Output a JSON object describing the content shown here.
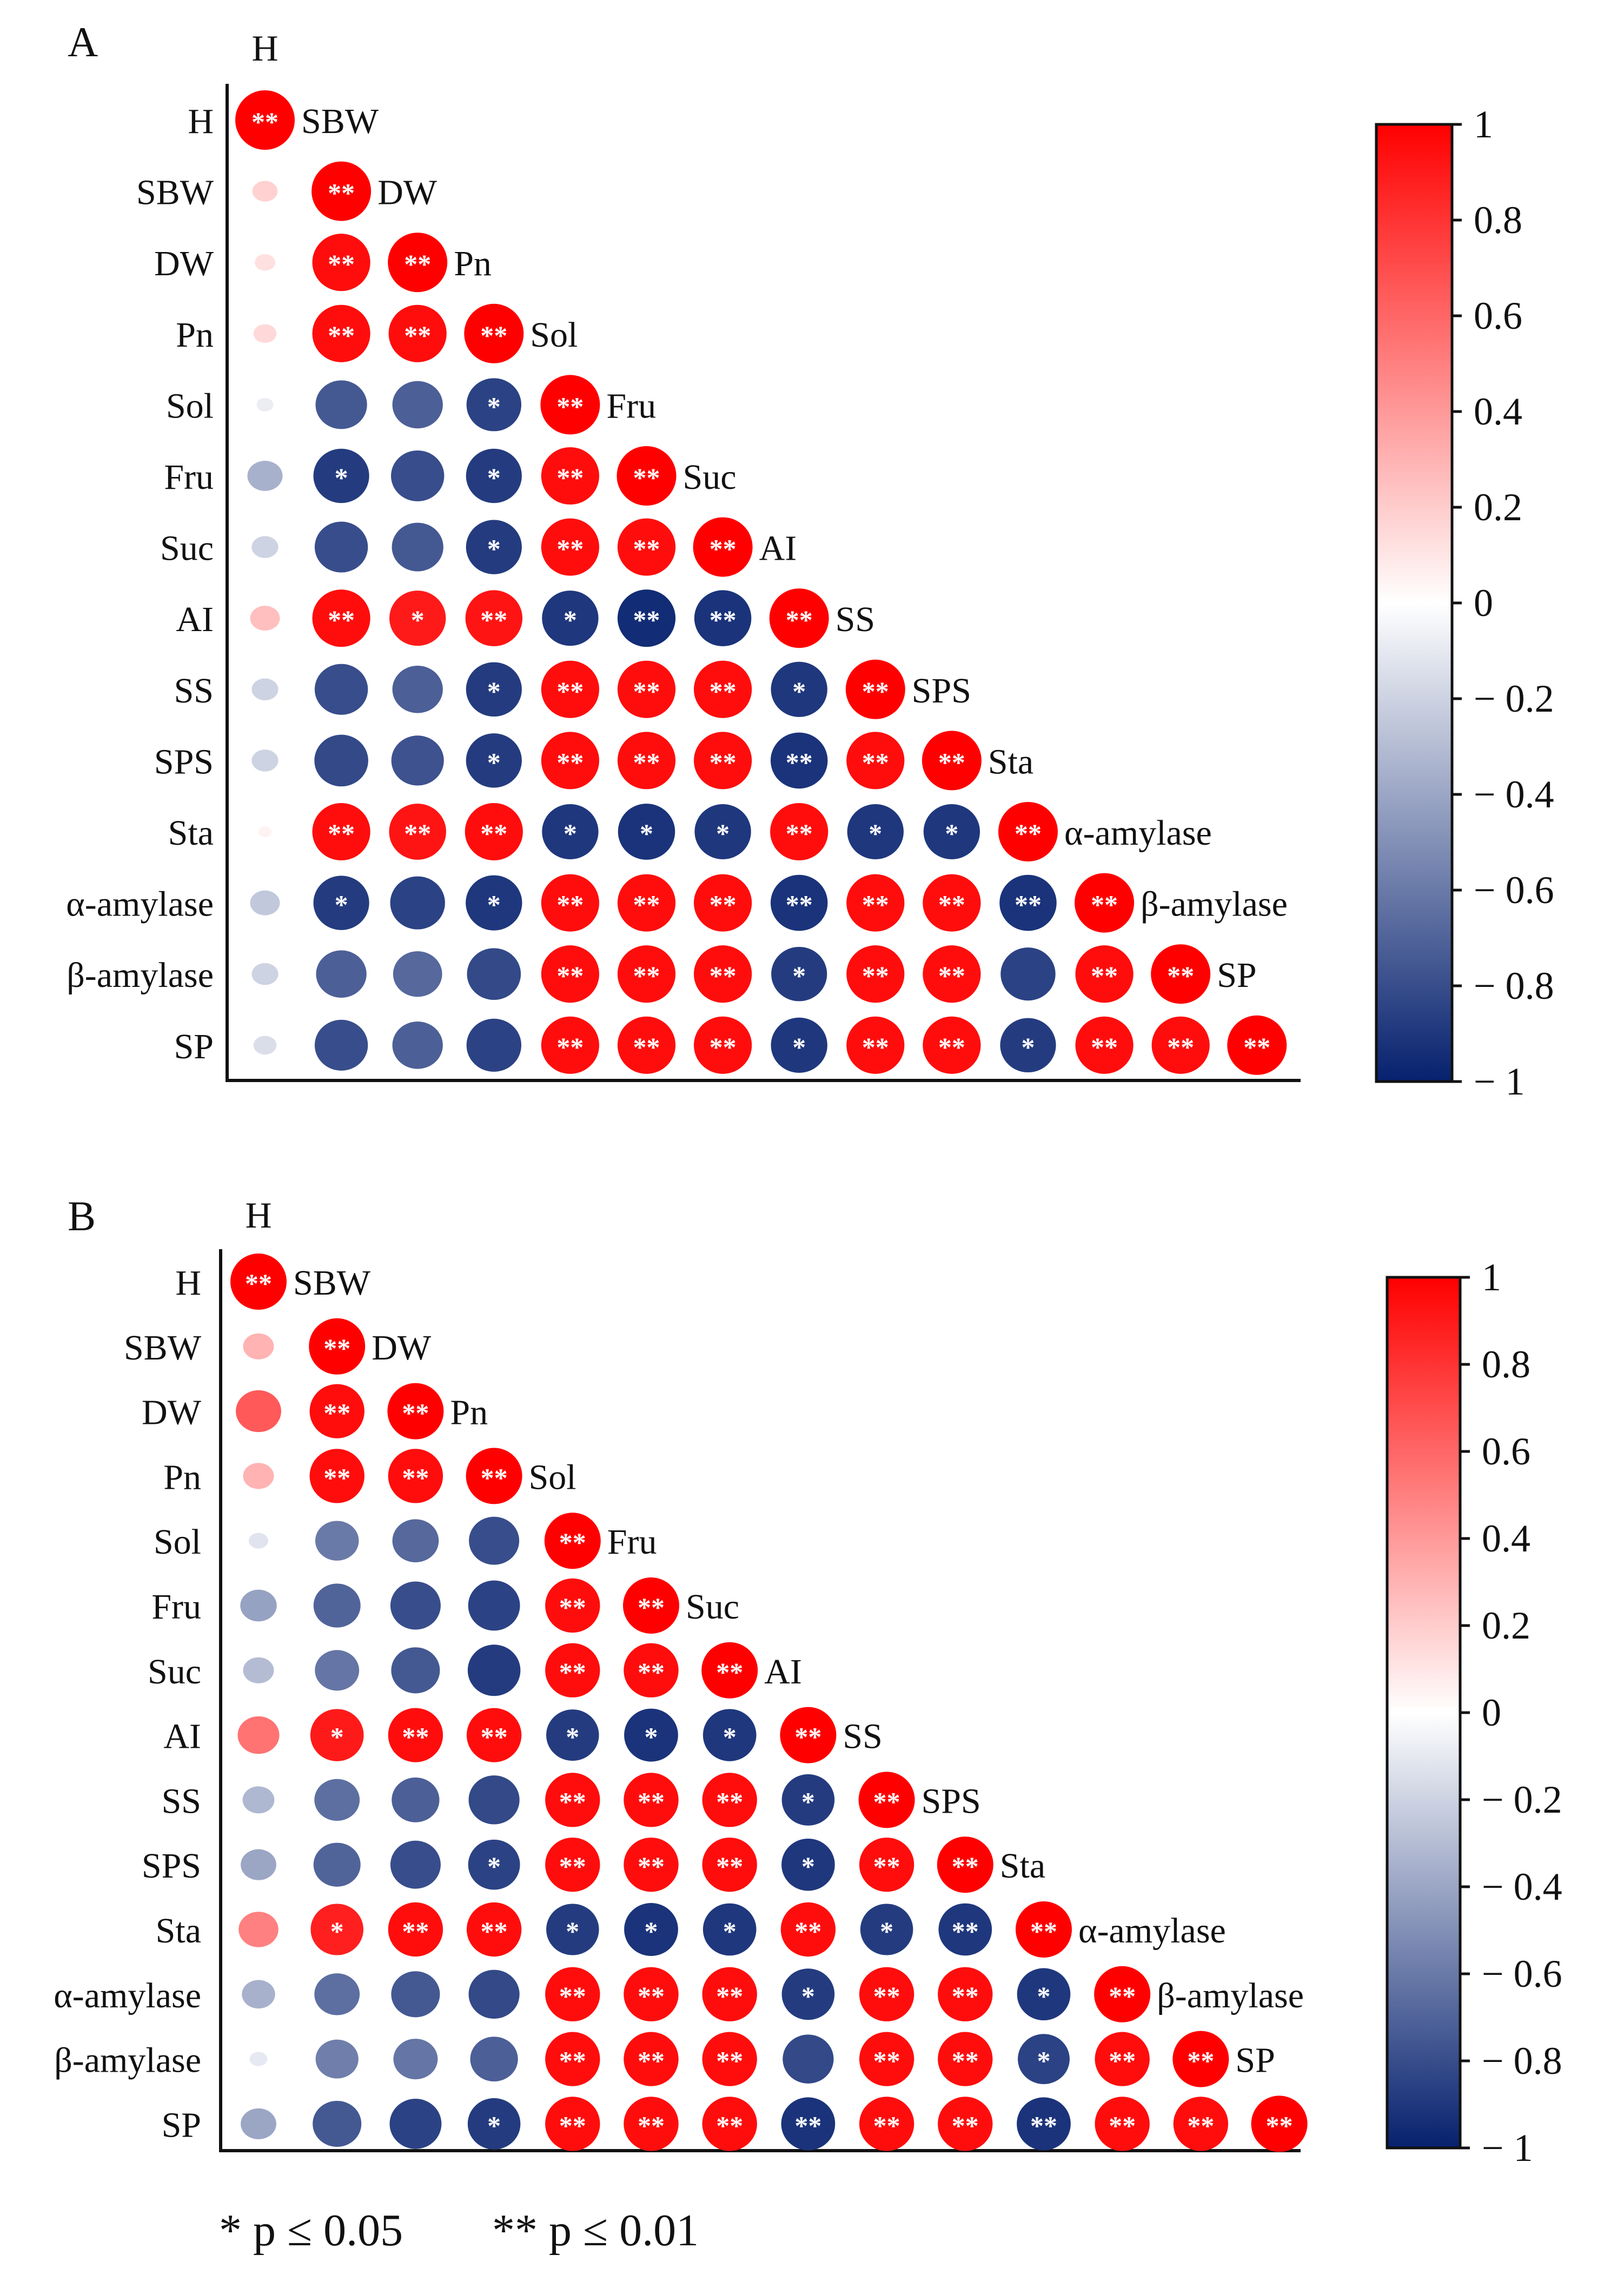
{
  "chart_data": [
    {
      "type": "heatmap",
      "panel_label": "A",
      "variables": [
        "H",
        "SBW",
        "DW",
        "Pn",
        "Sol",
        "Fru",
        "Suc",
        "AI",
        "SS",
        "SPS",
        "Sta",
        "α-amylase",
        "β-amylase",
        "SP"
      ],
      "matrix_lower": [
        [
          1.0
        ],
        [
          0.18,
          1.0
        ],
        [
          0.12,
          0.95,
          1.0
        ],
        [
          0.15,
          0.95,
          0.95,
          1.0
        ],
        [
          -0.08,
          -0.75,
          -0.72,
          -0.85,
          1.0
        ],
        [
          -0.35,
          -0.88,
          -0.8,
          -0.88,
          0.95,
          1.0
        ],
        [
          -0.2,
          -0.8,
          -0.75,
          -0.88,
          0.95,
          0.95,
          1.0
        ],
        [
          0.25,
          0.95,
          0.9,
          0.92,
          -0.9,
          -0.95,
          -0.92,
          1.0
        ],
        [
          -0.2,
          -0.8,
          -0.72,
          -0.88,
          0.95,
          0.95,
          0.95,
          -0.9,
          1.0
        ],
        [
          -0.2,
          -0.82,
          -0.78,
          -0.88,
          0.95,
          0.95,
          0.95,
          -0.92,
          0.95,
          1.0
        ],
        [
          0.05,
          0.95,
          0.92,
          0.95,
          -0.9,
          -0.92,
          -0.9,
          0.95,
          -0.9,
          -0.9,
          1.0
        ],
        [
          -0.25,
          -0.88,
          -0.85,
          -0.9,
          0.95,
          0.95,
          0.95,
          -0.92,
          0.95,
          0.95,
          -0.92,
          1.0
        ],
        [
          -0.2,
          -0.72,
          -0.68,
          -0.82,
          0.95,
          0.95,
          0.95,
          -0.88,
          0.95,
          0.95,
          -0.85,
          0.95,
          1.0
        ],
        [
          -0.15,
          -0.8,
          -0.72,
          -0.85,
          0.95,
          0.95,
          0.95,
          -0.9,
          0.95,
          0.95,
          -0.88,
          0.95,
          0.95,
          1.0
        ]
      ],
      "significance_lower": [
        [
          "**"
        ],
        [
          "",
          "**"
        ],
        [
          "",
          "**",
          "**"
        ],
        [
          "",
          "**",
          "**",
          "**"
        ],
        [
          "",
          "",
          "",
          "*",
          "**"
        ],
        [
          "",
          "*",
          "",
          "*",
          "**",
          "**"
        ],
        [
          "",
          "",
          "",
          "*",
          "**",
          "**",
          "**"
        ],
        [
          "",
          "**",
          "*",
          "**",
          "*",
          "**",
          "**",
          "**"
        ],
        [
          "",
          "",
          "",
          "*",
          "**",
          "**",
          "**",
          "*",
          "**"
        ],
        [
          "",
          "",
          "",
          "*",
          "**",
          "**",
          "**",
          "**",
          "**",
          "**"
        ],
        [
          "",
          "**",
          "**",
          "**",
          "*",
          "*",
          "*",
          "**",
          "*",
          "*",
          "**"
        ],
        [
          "",
          "*",
          "",
          "*",
          "**",
          "**",
          "**",
          "**",
          "**",
          "**",
          "**",
          "**"
        ],
        [
          "",
          "",
          "",
          "",
          "**",
          "**",
          "**",
          "*",
          "**",
          "**",
          "",
          "**",
          "**"
        ],
        [
          "",
          "",
          "",
          "",
          "**",
          "**",
          "**",
          "*",
          "**",
          "**",
          "*",
          "**",
          "**",
          "**"
        ]
      ],
      "colorbar_ticks": [
        "1",
        "0.8",
        "0.6",
        "0.4",
        "0.2",
        "0",
        "− 0.2",
        "− 0.4",
        "− 0.6",
        "− 0.8",
        "− 1"
      ],
      "range": [
        -1,
        1
      ]
    },
    {
      "type": "heatmap",
      "panel_label": "B",
      "variables": [
        "H",
        "SBW",
        "DW",
        "Pn",
        "Sol",
        "Fru",
        "Suc",
        "AI",
        "SS",
        "SPS",
        "Sta",
        "α-amylase",
        "β-amylase",
        "SP"
      ],
      "matrix_lower": [
        [
          1.0
        ],
        [
          0.3,
          1.0
        ],
        [
          0.65,
          0.95,
          1.0
        ],
        [
          0.3,
          0.95,
          0.95,
          1.0
        ],
        [
          -0.12,
          -0.6,
          -0.68,
          -0.8,
          1.0
        ],
        [
          -0.42,
          -0.7,
          -0.8,
          -0.85,
          0.95,
          1.0
        ],
        [
          -0.3,
          -0.62,
          -0.75,
          -0.88,
          0.95,
          0.95,
          1.0
        ],
        [
          0.55,
          0.9,
          0.95,
          0.95,
          -0.88,
          -0.92,
          -0.9,
          1.0
        ],
        [
          -0.32,
          -0.65,
          -0.72,
          -0.82,
          0.95,
          0.95,
          0.95,
          -0.88,
          1.0
        ],
        [
          -0.4,
          -0.7,
          -0.8,
          -0.85,
          0.95,
          0.95,
          0.95,
          -0.9,
          0.95,
          1.0
        ],
        [
          0.5,
          0.88,
          0.95,
          0.95,
          -0.88,
          -0.92,
          -0.9,
          0.95,
          -0.88,
          -0.9,
          1.0
        ],
        [
          -0.35,
          -0.65,
          -0.75,
          -0.82,
          0.95,
          0.95,
          0.95,
          -0.88,
          0.95,
          0.95,
          -0.9,
          1.0
        ],
        [
          -0.1,
          -0.58,
          -0.62,
          -0.72,
          0.95,
          0.95,
          0.95,
          -0.82,
          0.95,
          0.95,
          -0.85,
          0.95,
          1.0
        ],
        [
          -0.4,
          -0.75,
          -0.85,
          -0.88,
          0.95,
          0.95,
          0.95,
          -0.92,
          0.95,
          0.95,
          -0.92,
          0.95,
          0.95,
          1.0
        ]
      ],
      "significance_lower": [
        [
          "**"
        ],
        [
          "",
          "**"
        ],
        [
          "",
          "**",
          "**"
        ],
        [
          "",
          "**",
          "**",
          "**"
        ],
        [
          "",
          "",
          "",
          "",
          "**"
        ],
        [
          "",
          "",
          "",
          "",
          "**",
          "**"
        ],
        [
          "",
          "",
          "",
          "",
          "**",
          "**",
          "**"
        ],
        [
          "",
          "*",
          "**",
          "**",
          "*",
          "*",
          "*",
          "**"
        ],
        [
          "",
          "",
          "",
          "",
          "**",
          "**",
          "**",
          "*",
          "**"
        ],
        [
          "",
          "",
          "",
          "*",
          "**",
          "**",
          "**",
          "*",
          "**",
          "**"
        ],
        [
          "",
          "*",
          "**",
          "**",
          "*",
          "*",
          "*",
          "**",
          "*",
          "**",
          "**"
        ],
        [
          "",
          "",
          "",
          "",
          "**",
          "**",
          "**",
          "*",
          "**",
          "**",
          "*",
          "**"
        ],
        [
          "",
          "",
          "",
          "",
          "**",
          "**",
          "**",
          "",
          "**",
          "**",
          "*",
          "**",
          "**"
        ],
        [
          "",
          "",
          "",
          "*",
          "**",
          "**",
          "**",
          "**",
          "**",
          "**",
          "**",
          "**",
          "**",
          "**"
        ]
      ],
      "colorbar_ticks": [
        "1",
        "0.8",
        "0.6",
        "0.4",
        "0.2",
        "0",
        "− 0.2",
        "− 0.4",
        "− 0.6",
        "− 0.8",
        "− 1"
      ],
      "range": [
        -1,
        1
      ]
    }
  ],
  "colors": {
    "positive": "#ff0000",
    "neutral": "#ffffff",
    "negative": "#06216e"
  },
  "legend": {
    "single_star": "* p ≤ 0.05",
    "double_star": "** p ≤ 0.01"
  }
}
